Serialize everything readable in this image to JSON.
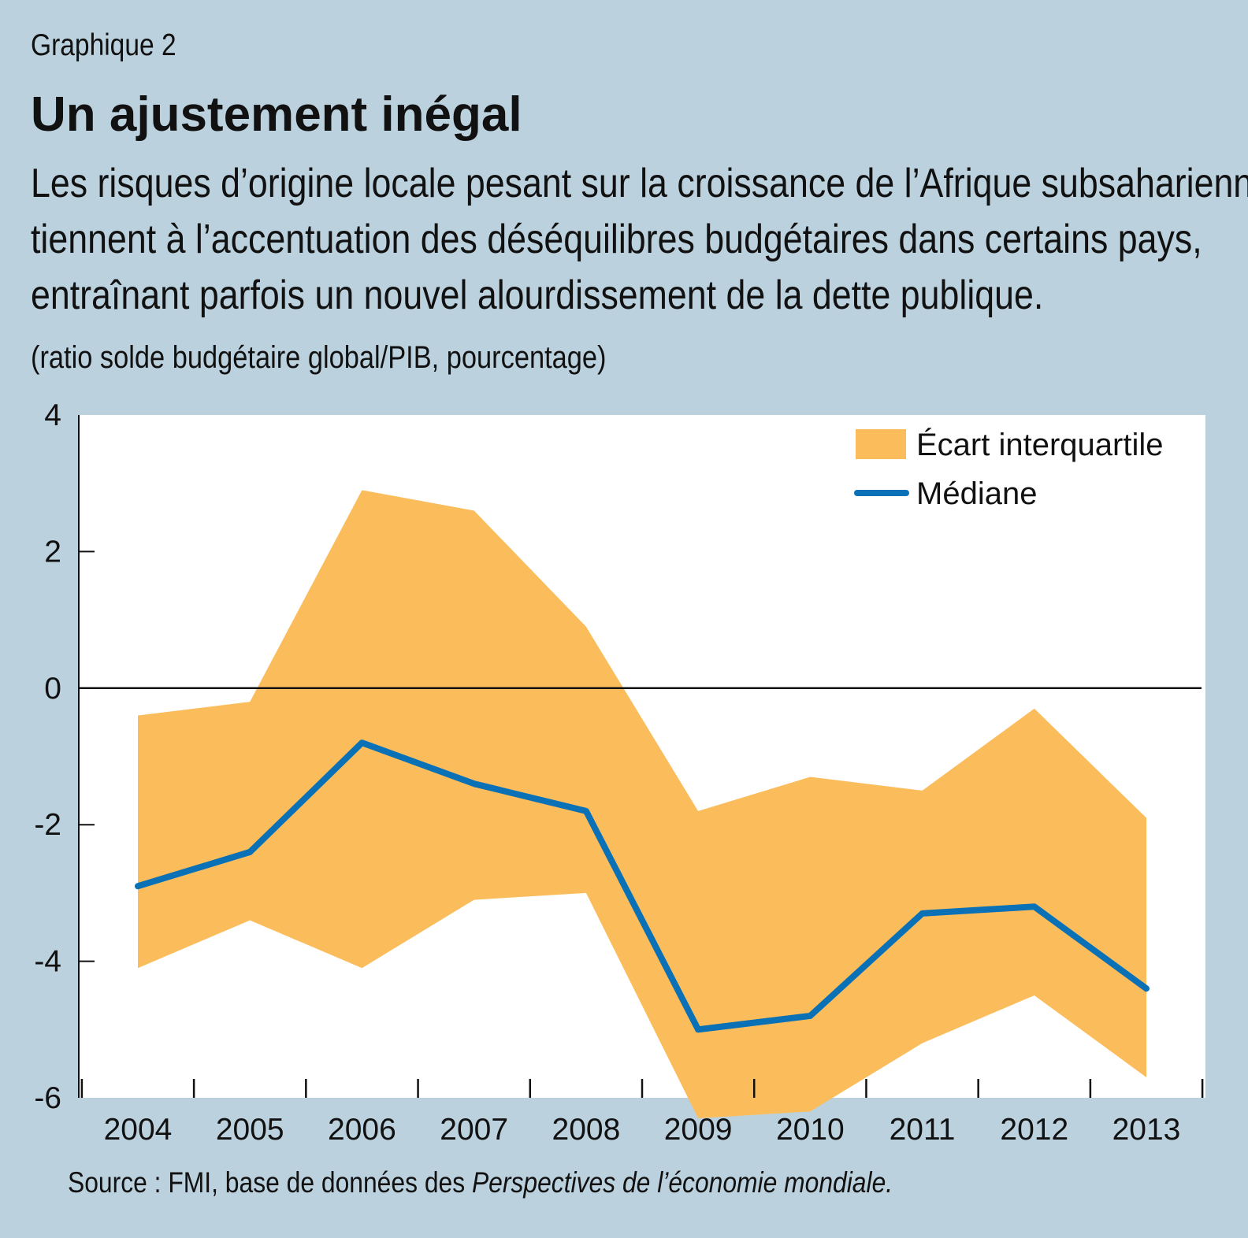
{
  "figure": {
    "label": "Graphique 2",
    "title": "Un ajustement inégal",
    "subtitle_lines": [
      "Les risques d’origine locale pesant sur la croissance de l’Afrique subsaharienne",
      "tiennent à l’accentuation des déséquilibres budgétaires dans certains pays,",
      "entraînant parfois un nouvel alourdissement de la dette publique."
    ],
    "unit": "(ratio solde budgétaire global/PIB, pourcentage)",
    "source_prefix": "Source : FMI, base de données des ",
    "source_italic": "Perspectives de l’économie mondiale."
  },
  "colors": {
    "background": "#bcd1de",
    "plot_background": "#ffffff",
    "band": "#fbbd5c",
    "median": "#0a71b6",
    "zero_line": "#111111"
  },
  "chart_data": {
    "type": "area",
    "categories": [
      "2004",
      "2005",
      "2006",
      "2007",
      "2008",
      "2009",
      "2010",
      "2011",
      "2012",
      "2013"
    ],
    "ylim": [
      -6,
      4
    ],
    "yticks": [
      4,
      2,
      0,
      -2,
      -4,
      -6
    ],
    "ytick_labels": [
      "4",
      "2",
      "0",
      "-2",
      "-4",
      "-6"
    ],
    "grid": false,
    "legend_position": "top-right",
    "series": [
      {
        "name": "Écart interquartile",
        "kind": "band",
        "upper": [
          -0.4,
          -0.2,
          2.9,
          2.6,
          0.9,
          -1.8,
          -1.3,
          -1.5,
          -0.3,
          -1.9
        ],
        "lower": [
          -4.1,
          -3.4,
          -4.1,
          -3.1,
          -3.0,
          -6.3,
          -6.2,
          -5.2,
          -4.5,
          -5.7
        ]
      },
      {
        "name": "Médiane",
        "kind": "line",
        "values": [
          -2.9,
          -2.4,
          -0.8,
          -1.4,
          -1.8,
          -5.0,
          -4.8,
          -3.3,
          -3.2,
          -4.4
        ]
      }
    ]
  }
}
